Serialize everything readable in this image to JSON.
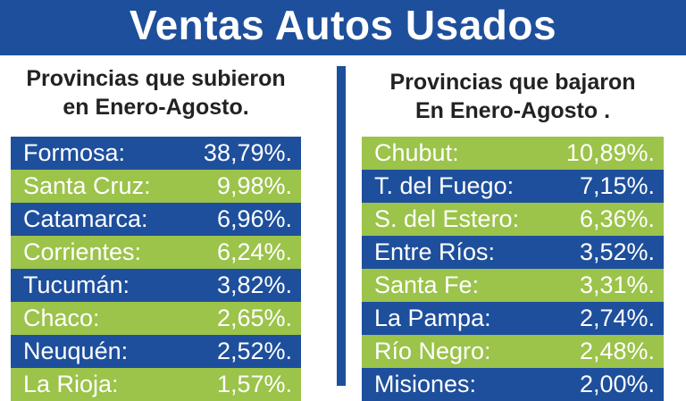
{
  "header": {
    "title": "Ventas Autos Usados"
  },
  "left": {
    "subtitle_line1": "Provincias que subieron",
    "subtitle_line2": "en Enero-Agosto.",
    "rows": [
      {
        "name": "Formosa:",
        "pct": "38,79%."
      },
      {
        "name": "Santa Cruz:",
        "pct": "9,98%."
      },
      {
        "name": "Catamarca:",
        "pct": "6,96%."
      },
      {
        "name": "Corrientes:",
        "pct": "6,24%."
      },
      {
        "name": "Tucumán:",
        "pct": "3,82%."
      },
      {
        "name": "Chaco:",
        "pct": "2,65%."
      },
      {
        "name": "Neuquén:",
        "pct": "2,52%."
      },
      {
        "name": "La Rioja:",
        "pct": "1,57%."
      }
    ]
  },
  "right": {
    "subtitle_line1": "Provincias que bajaron",
    "subtitle_line2": "En Enero-Agosto .",
    "rows": [
      {
        "name": "Chubut:",
        "pct": "10,89%."
      },
      {
        "name": "T. del Fuego:",
        "pct": "7,15%."
      },
      {
        "name": "S. del  Estero:",
        "pct": "6,36%."
      },
      {
        "name": "Entre Ríos:",
        "pct": "3,52%."
      },
      {
        "name": "Santa Fe:",
        "pct": "3,31%."
      },
      {
        "name": "La Pampa:",
        "pct": "2,74%."
      },
      {
        "name": "Río Negro:",
        "pct": "2,48%."
      },
      {
        "name": "Misiones:",
        "pct": "2,00%."
      }
    ]
  },
  "colors": {
    "blue": "#1e4f9c",
    "green": "#9cc34a"
  }
}
